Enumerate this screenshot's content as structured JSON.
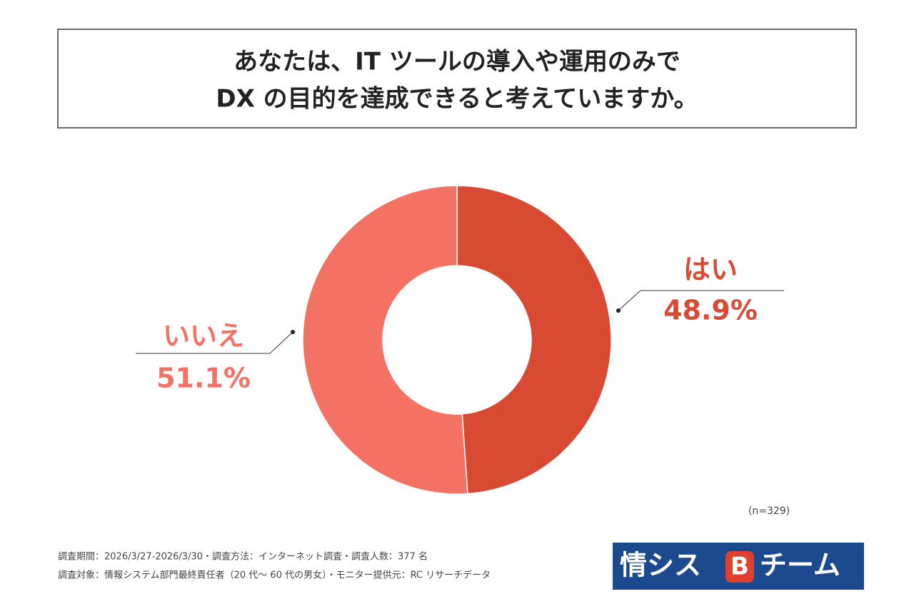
{
  "chart_data": {
    "type": "donut",
    "title": [
      "あなたは、IT ツールの導入や運用のみで",
      "DX の目的を達成できると考えていますか。"
    ],
    "categories": [
      "はい",
      "いいえ"
    ],
    "values": [
      48.9,
      51.1
    ],
    "value_labels": [
      "48.9%",
      "51.1%"
    ],
    "colors": [
      "#d94a33",
      "#f47264"
    ],
    "note": "(n=329)",
    "footer": [
      "調査期間：2026/3/27-2026/3/30・調査方法：インターネット調査・調査人数：377 名",
      "調査対象：情報システム部門最終責任者（20 代〜 60 代の男女）・モニター提供元：RC リサーチデータ"
    ],
    "logo": {
      "left": "情シス",
      "mark": "B",
      "right": "チーム"
    }
  }
}
